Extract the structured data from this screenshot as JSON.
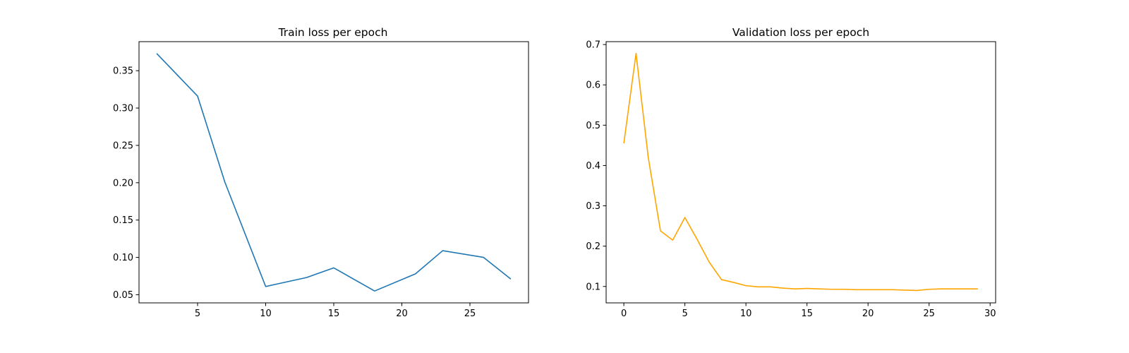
{
  "chart_data": [
    {
      "type": "line",
      "title": "Train loss per epoch",
      "xlabel": "",
      "ylabel": "",
      "x": [
        2,
        5,
        7,
        10,
        13,
        15,
        18,
        21,
        23,
        26,
        28
      ],
      "series": [
        {
          "color": "#1f77b4",
          "values": [
            0.373,
            0.316,
            0.201,
            0.061,
            0.073,
            0.086,
            0.055,
            0.078,
            0.109,
            0.1,
            0.071
          ]
        }
      ],
      "xlim": [
        0.7,
        29.3
      ],
      "ylim": [
        0.0391,
        0.3889
      ],
      "xticks": [
        5,
        10,
        15,
        20,
        25
      ],
      "yticks": [
        0.05,
        0.1,
        0.15,
        0.2,
        0.25,
        0.3,
        0.35
      ],
      "xtick_labels": [
        "5",
        "10",
        "15",
        "20",
        "25"
      ],
      "ytick_labels": [
        "0.05",
        "0.10",
        "0.15",
        "0.20",
        "0.25",
        "0.30",
        "0.35"
      ],
      "grid": false
    },
    {
      "type": "line",
      "title": "Validation loss per epoch",
      "xlabel": "",
      "ylabel": "",
      "x": [
        0,
        1,
        2,
        3,
        4,
        5,
        6,
        7,
        8,
        9,
        10,
        11,
        12,
        13,
        14,
        15,
        16,
        17,
        18,
        19,
        20,
        21,
        22,
        23,
        24,
        25,
        26,
        27,
        28,
        29
      ],
      "series": [
        {
          "color": "#ffa500",
          "values": [
            0.455,
            0.678,
            0.42,
            0.238,
            0.215,
            0.271,
            0.217,
            0.16,
            0.117,
            0.11,
            0.102,
            0.099,
            0.099,
            0.096,
            0.094,
            0.095,
            0.094,
            0.093,
            0.093,
            0.092,
            0.092,
            0.092,
            0.092,
            0.091,
            0.09,
            0.093,
            0.094,
            0.094,
            0.094,
            0.094
          ]
        }
      ],
      "xlim": [
        -1.45,
        30.45
      ],
      "ylim": [
        0.0593,
        0.7072
      ],
      "xticks": [
        0,
        5,
        10,
        15,
        20,
        25,
        30
      ],
      "yticks": [
        0.1,
        0.2,
        0.3,
        0.4,
        0.5,
        0.6,
        0.7
      ],
      "xtick_labels": [
        "0",
        "5",
        "10",
        "15",
        "20",
        "25",
        "30"
      ],
      "ytick_labels": [
        "0.1",
        "0.2",
        "0.3",
        "0.4",
        "0.5",
        "0.6",
        "0.7"
      ],
      "grid": false
    }
  ]
}
